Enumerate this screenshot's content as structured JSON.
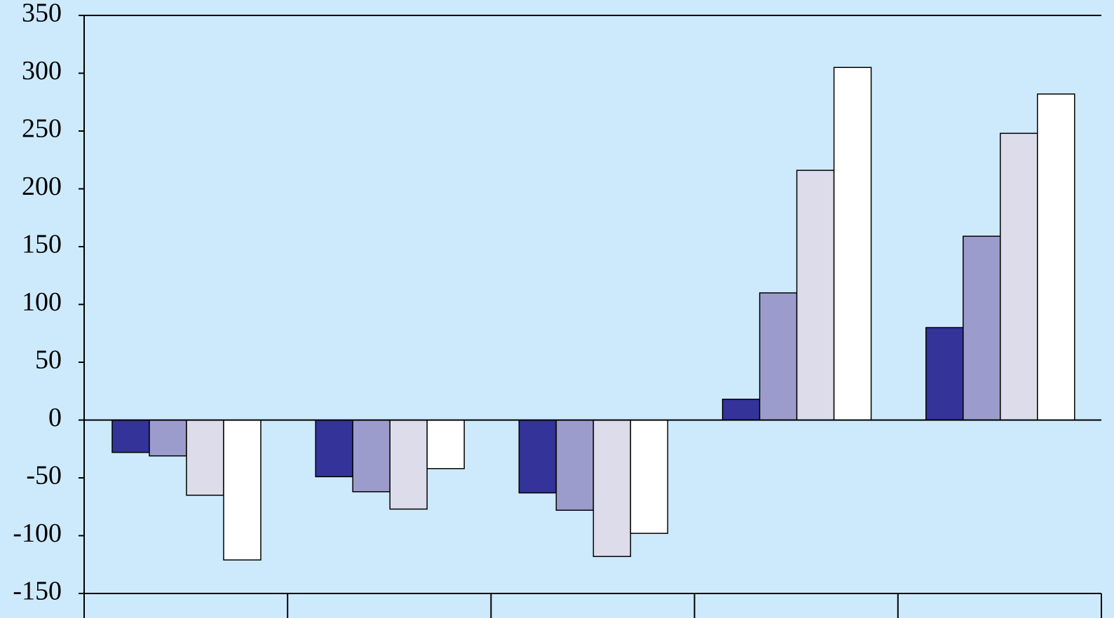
{
  "chart_data": {
    "type": "bar",
    "categories": [
      null,
      null,
      null,
      null,
      null
    ],
    "series": [
      {
        "color": "#333399",
        "values": [
          -28,
          -49,
          -63,
          18,
          80
        ]
      },
      {
        "color": "#9c9ccc",
        "values": [
          -31,
          -62,
          -78,
          110,
          159
        ]
      },
      {
        "color": "#dcdcea",
        "values": [
          -65,
          -77,
          -118,
          216,
          248
        ]
      },
      {
        "color": "#ffffff",
        "values": [
          -121,
          -42,
          -98,
          305,
          282
        ]
      }
    ],
    "ylim": [
      -150,
      350
    ],
    "yticks": [
      -150,
      -100,
      -50,
      0,
      50,
      100,
      150,
      200,
      250,
      300,
      350
    ],
    "grid": false
  }
}
